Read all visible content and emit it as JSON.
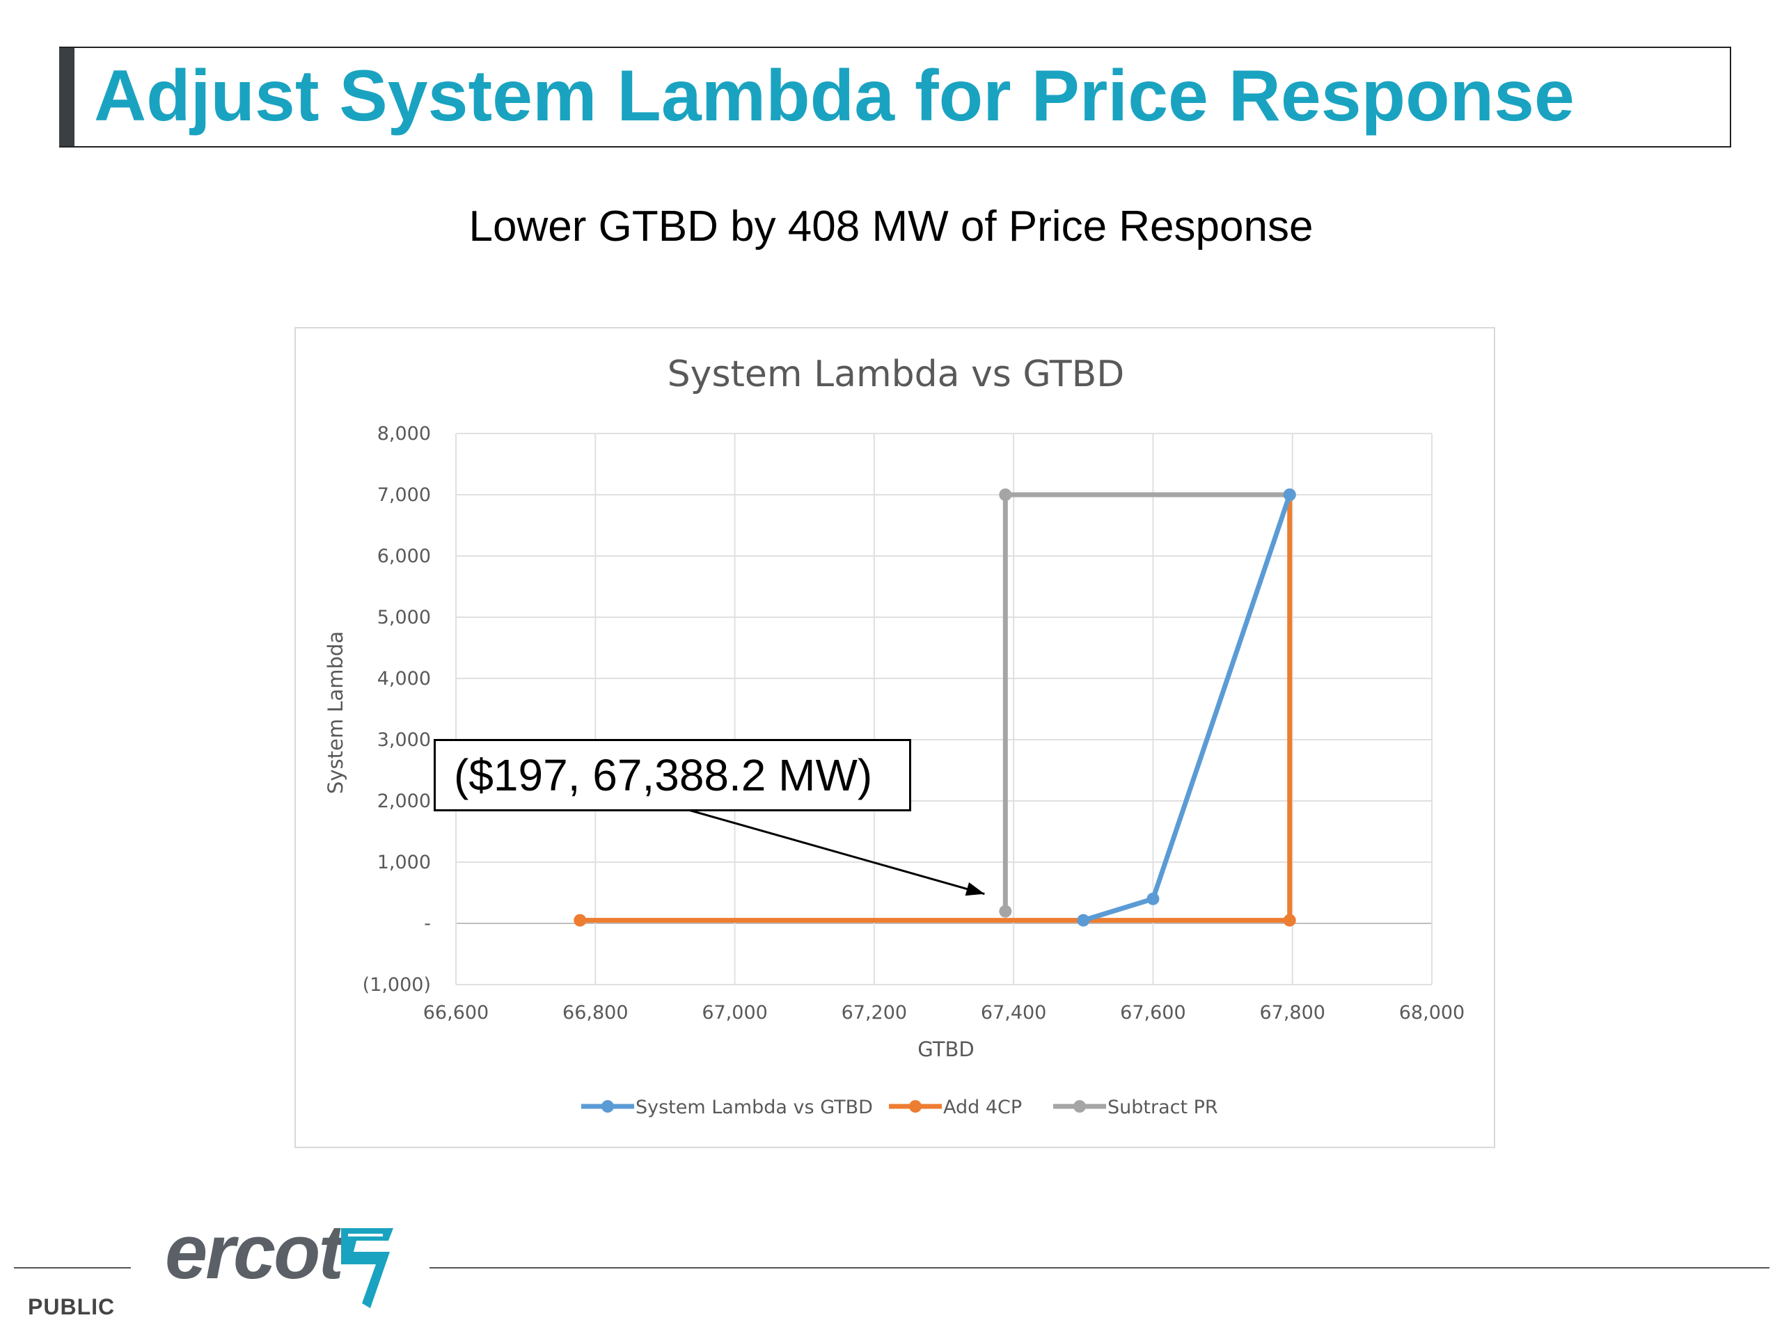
{
  "slide": {
    "title": "Adjust System Lambda for Price Response",
    "subtitle": "Lower GTBD by 408 MW of Price Response",
    "footer_label": "PUBLIC",
    "logo_text": "ercot"
  },
  "colors": {
    "title": "#1aa3c0",
    "series_blue": "#5b9bd5",
    "series_orange": "#ed7d31",
    "series_gray": "#a5a5a5"
  },
  "callout": {
    "text": "($197, 67,388.2 MW)"
  },
  "chart_data": {
    "type": "line",
    "title": "System Lambda vs GTBD",
    "xlabel": "GTBD",
    "ylabel": "System Lambda",
    "xlim": [
      66600,
      68000
    ],
    "ylim": [
      -1000,
      8000
    ],
    "x_ticks": [
      66600,
      66800,
      67000,
      67200,
      67400,
      67600,
      67800,
      68000
    ],
    "x_tick_labels": [
      "66,600",
      "66,800",
      "67,000",
      "67,200",
      "67,400",
      "67,600",
      "67,800",
      "68,000"
    ],
    "y_ticks": [
      -1000,
      0,
      1000,
      2000,
      3000,
      4000,
      5000,
      6000,
      7000,
      8000
    ],
    "y_tick_labels": [
      "(1,000)",
      "-",
      "1,000",
      "2,000",
      "3,000",
      "4,000",
      "5,000",
      "6,000",
      "7,000",
      "8,000"
    ],
    "grid": true,
    "legend_position": "bottom",
    "series": [
      {
        "name": "System Lambda vs GTBD",
        "color": "#5b9bd5",
        "points": [
          [
            67500,
            50
          ],
          [
            67600,
            400
          ],
          [
            67796,
            7000
          ]
        ]
      },
      {
        "name": "Add 4CP",
        "color": "#ed7d31",
        "points": [
          [
            66778,
            50
          ],
          [
            67796,
            50
          ],
          [
            67796,
            7000
          ]
        ]
      },
      {
        "name": "Subtract PR",
        "color": "#a5a5a5",
        "points": [
          [
            67388.2,
            197
          ],
          [
            67388.2,
            7000
          ],
          [
            67796,
            7000
          ]
        ]
      }
    ]
  }
}
